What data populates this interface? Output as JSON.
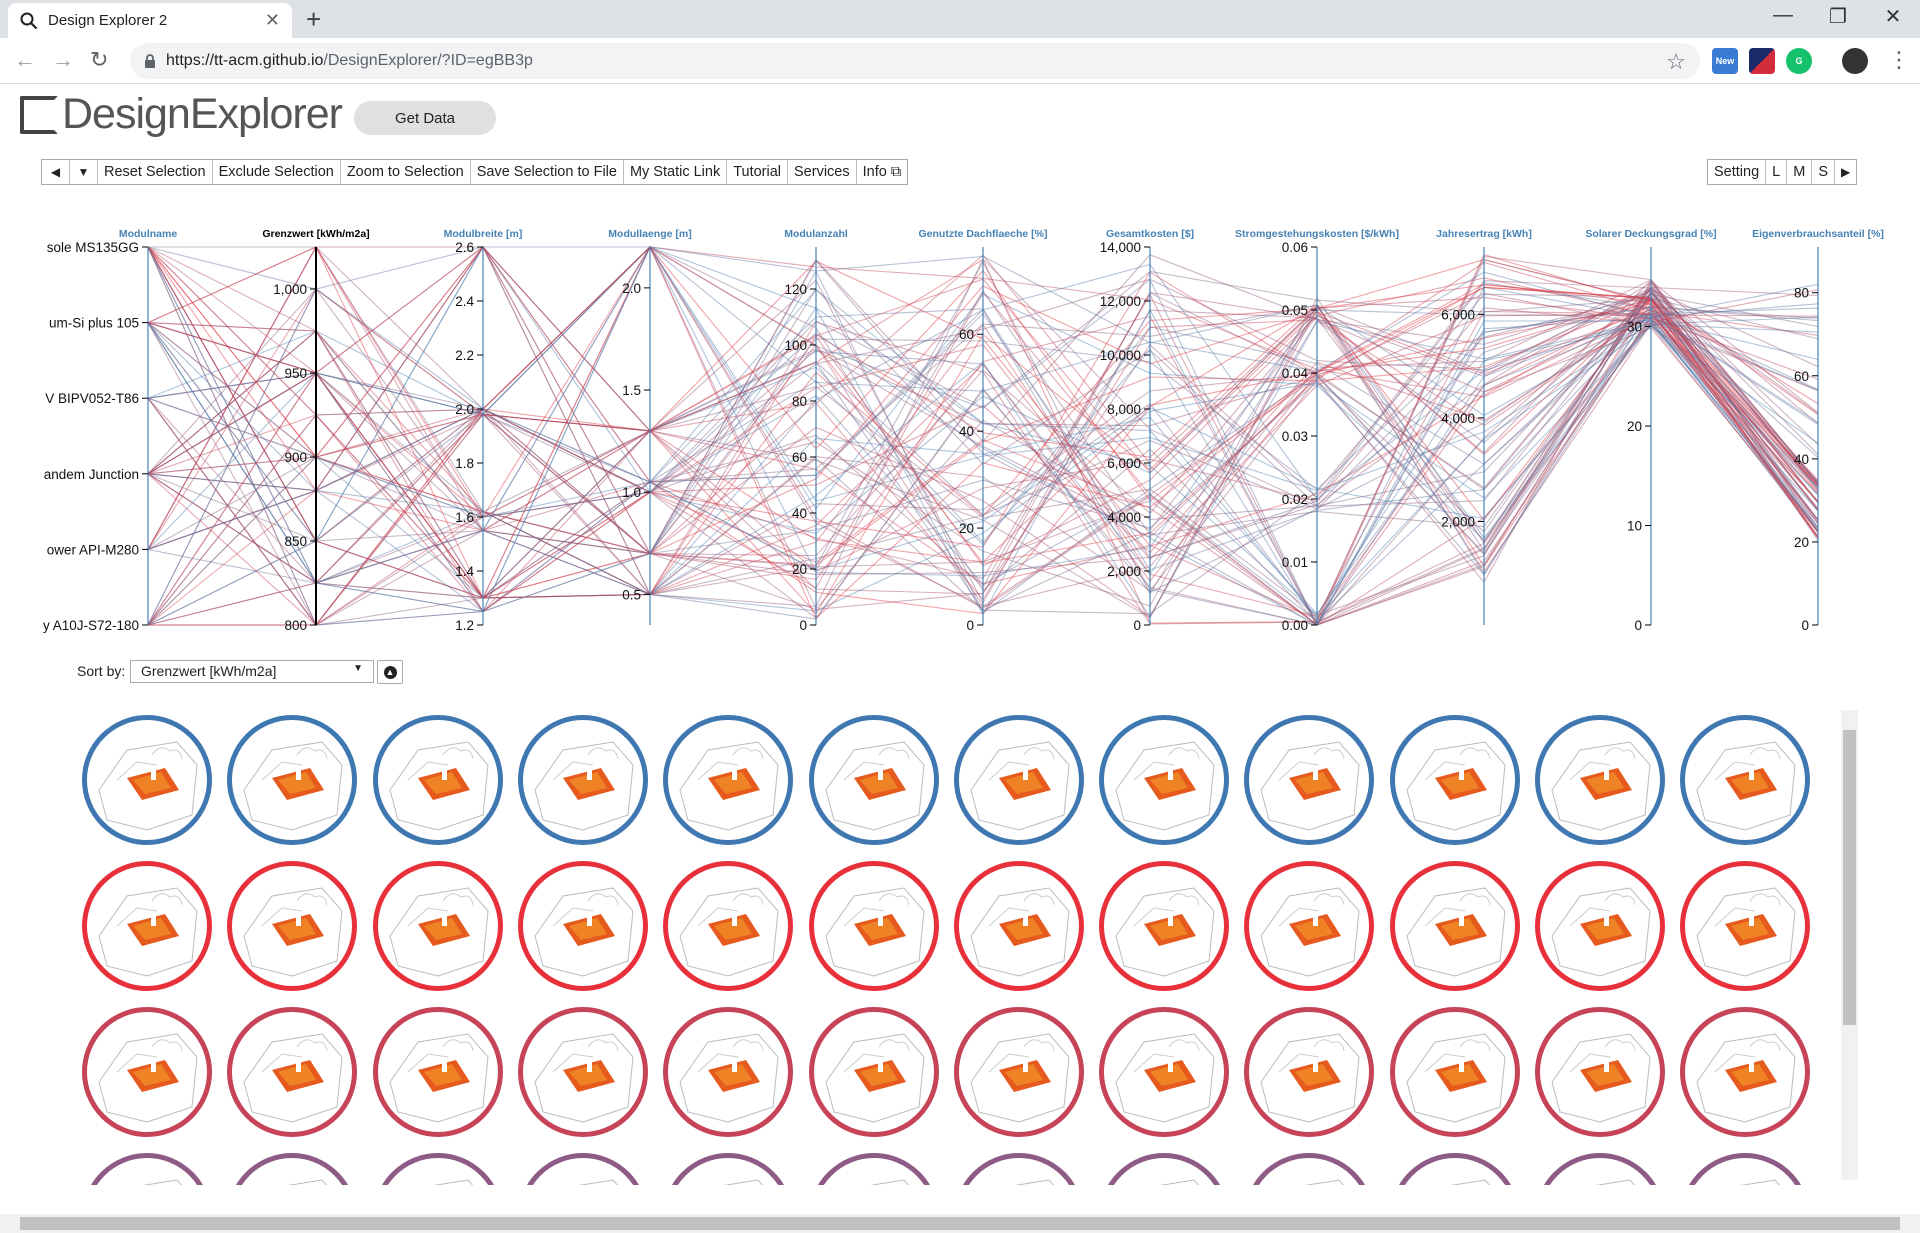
{
  "browser": {
    "tab_title": "Design Explorer 2",
    "url_host": "https://tt-acm.github.io",
    "url_path": "/DesignExplorer/?ID=egBB3p",
    "ext_new_label": "New"
  },
  "app": {
    "logo": "DesignExplorer",
    "get_data_label": "Get Data"
  },
  "toolbar": {
    "reset": "Reset Selection",
    "exclude": "Exclude Selection",
    "zoom": "Zoom to Selection",
    "save": "Save Selection to File",
    "static_link": "My Static Link",
    "tutorial": "Tutorial",
    "services": "Services",
    "info": "Info",
    "setting": "Setting",
    "size_l": "L",
    "size_m": "M",
    "size_s": "S"
  },
  "sort": {
    "label": "Sort by:",
    "selected": "Grenzwert [kWh/m2a]"
  },
  "chart_data": {
    "type": "parallel-coordinates",
    "axes": [
      {
        "name": "Modulname",
        "categorical": true,
        "ticks": [
          "sole MS135GG",
          "um-Si plus 105",
          "V BIPV052-T86",
          "andem Junction",
          "ower API-M280",
          "y A10J-S72-180"
        ]
      },
      {
        "name": "Grenzwert [kWh/m2a]",
        "range": [
          800,
          1025
        ],
        "ticks": [
          800,
          850,
          900,
          950,
          1000
        ],
        "tick_labels": [
          "800",
          "850",
          "900",
          "950",
          "1,000"
        ],
        "active": true
      },
      {
        "name": "Modulbreite [m]",
        "range": [
          1.2,
          2.6
        ],
        "ticks": [
          1.2,
          1.4,
          1.6,
          1.8,
          2.0,
          2.2,
          2.4,
          2.6
        ],
        "tick_labels": [
          "1.2",
          "1.4",
          "1.6",
          "1.8",
          "2.0",
          "2.2",
          "2.4",
          "2.6"
        ]
      },
      {
        "name": "Modullaenge [m]",
        "range": [
          0.35,
          2.2
        ],
        "ticks": [
          0.5,
          1.0,
          1.5,
          2.0
        ],
        "tick_labels": [
          "0.5",
          "1.0",
          "1.5",
          "2.0"
        ]
      },
      {
        "name": "Modulanzahl",
        "range": [
          0,
          135
        ],
        "ticks": [
          0,
          20,
          40,
          60,
          80,
          100,
          120
        ],
        "tick_labels": [
          "0",
          "20",
          "40",
          "60",
          "80",
          "100",
          "120"
        ]
      },
      {
        "name": "Genutzte Dachflaeche [%]",
        "range": [
          0,
          78
        ],
        "ticks": [
          0,
          20,
          40,
          60
        ],
        "tick_labels": [
          "0",
          "20",
          "40",
          "60"
        ]
      },
      {
        "name": "Gesamtkosten [$]",
        "range": [
          0,
          14000
        ],
        "ticks": [
          0,
          2000,
          4000,
          6000,
          8000,
          10000,
          12000,
          14000
        ],
        "tick_labels": [
          "0",
          "2,000",
          "4,000",
          "6,000",
          "8,000",
          "10,000",
          "12,000",
          "14,000"
        ]
      },
      {
        "name": "Stromgestehungskosten [$/kWh]",
        "range": [
          0,
          0.06
        ],
        "ticks": [
          0,
          0.01,
          0.02,
          0.03,
          0.04,
          0.05,
          0.06
        ],
        "tick_labels": [
          "0.00",
          "0.01",
          "0.02",
          "0.03",
          "0.04",
          "0.05",
          "0.06"
        ]
      },
      {
        "name": "Jahresertrag [kWh]",
        "range": [
          0,
          7300
        ],
        "ticks": [
          2000,
          4000,
          6000
        ],
        "tick_labels": [
          "2,000",
          "4,000",
          "6,000"
        ]
      },
      {
        "name": "Solarer Deckungsgrad [%]",
        "range": [
          0,
          38
        ],
        "ticks": [
          0,
          10,
          20,
          30
        ],
        "tick_labels": [
          "0",
          "10",
          "20",
          "30"
        ]
      },
      {
        "name": "Eigenverbrauchsanteil [%]",
        "range": [
          0,
          91
        ],
        "ticks": [
          0,
          20,
          40,
          60,
          80
        ],
        "tick_labels": [
          "0",
          "20",
          "40",
          "60",
          "80"
        ]
      }
    ],
    "color_scale": {
      "low": "#4682b4",
      "high": "#e8303a",
      "mid": "#8a4a78"
    }
  },
  "grid": {
    "rows": [
      {
        "color": "#3f77b0",
        "count": 12
      },
      {
        "color": "#e8303a",
        "count": 12
      },
      {
        "color": "#c64358",
        "count": 12
      },
      {
        "color": "#8e5a86",
        "count": 12
      }
    ]
  }
}
